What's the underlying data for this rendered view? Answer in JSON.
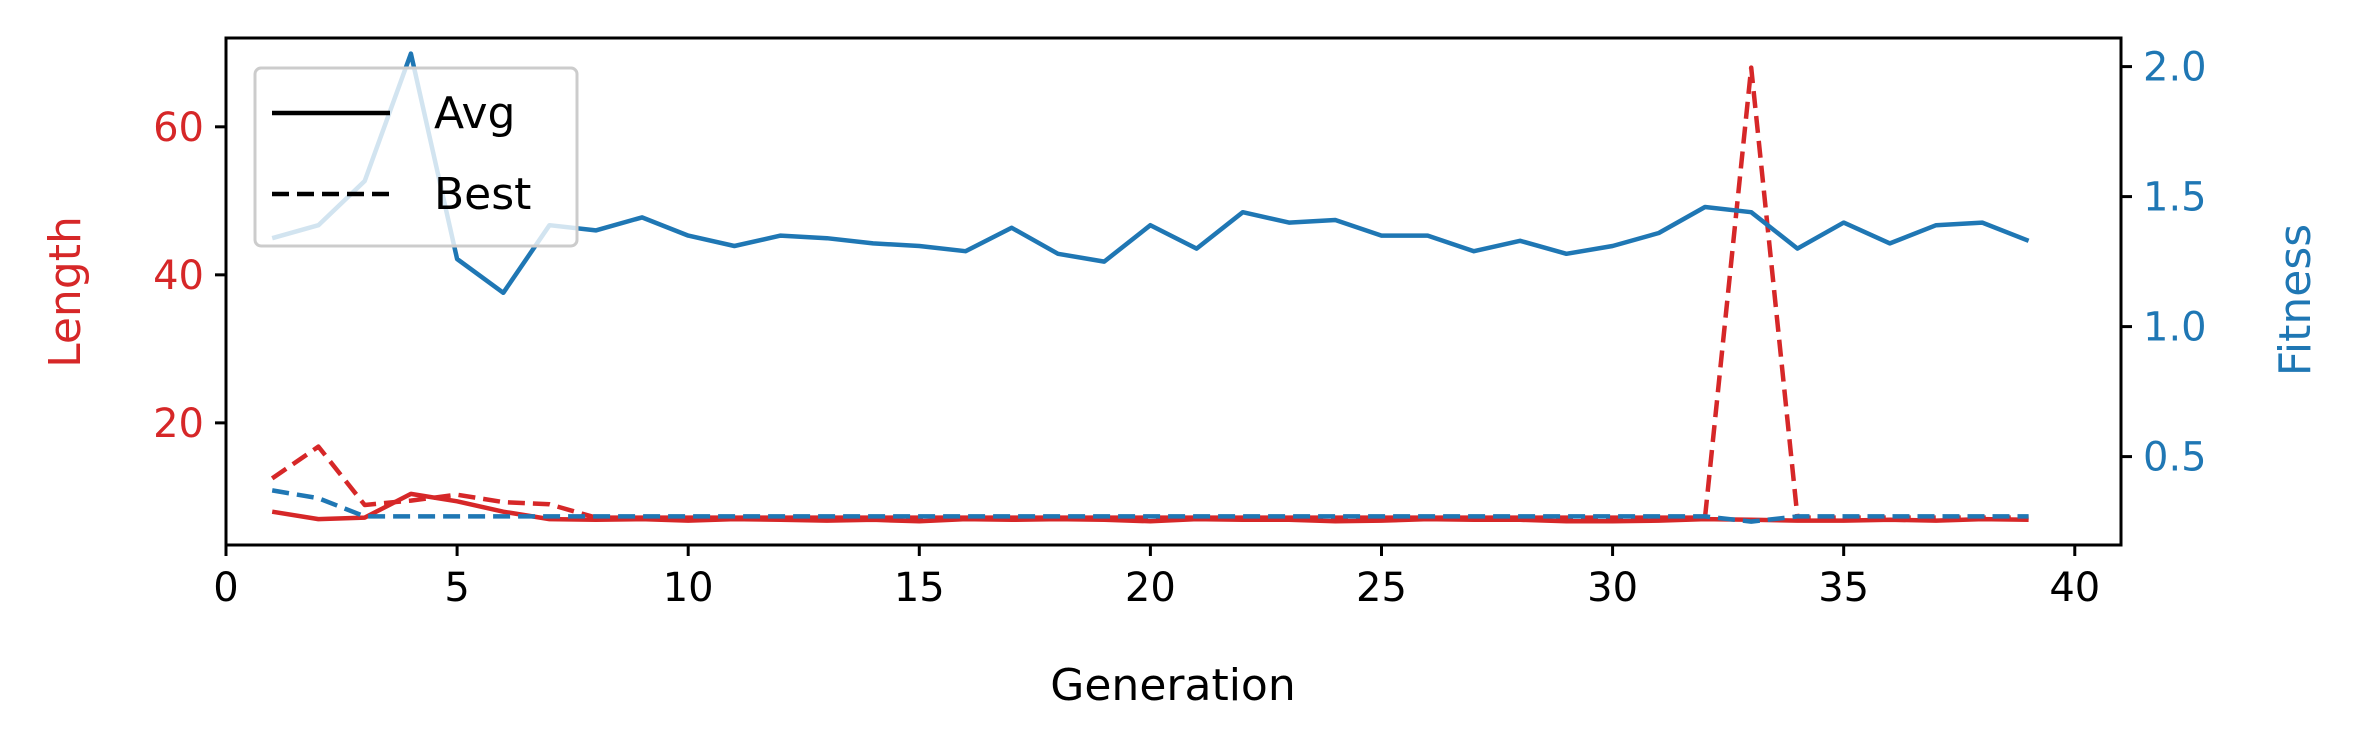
{
  "chart_data": {
    "type": "line",
    "xlabel": "Generation",
    "ylabel_left": "Length",
    "ylabel_right": "Fitness",
    "xlim": [
      0,
      41
    ],
    "ylim_left": [
      3.5,
      72
    ],
    "ylim_right": [
      0.16,
      2.11
    ],
    "xticks": [
      0,
      5,
      10,
      15,
      20,
      25,
      30,
      35,
      40
    ],
    "yticks_left": [
      20,
      40,
      60
    ],
    "yticks_right": [
      0.5,
      1.0,
      1.5,
      2.0
    ],
    "xtick_labels": [
      "0",
      "5",
      "10",
      "15",
      "20",
      "25",
      "30",
      "35",
      "40"
    ],
    "ytick_labels_left": [
      "20",
      "40",
      "60"
    ],
    "ytick_labels_right": [
      "0.5",
      "1.0",
      "1.5",
      "2.0"
    ],
    "grid": false,
    "legend_placement": "upper-left",
    "legend": [
      {
        "label": "Avg",
        "style": "solid"
      },
      {
        "label": "Best",
        "style": "dashed"
      }
    ],
    "colors": {
      "length": "#d62728",
      "fitness": "#1f77b4",
      "axis": "#000000"
    },
    "x": [
      1,
      2,
      3,
      4,
      5,
      6,
      7,
      8,
      9,
      10,
      11,
      12,
      13,
      14,
      15,
      16,
      17,
      18,
      19,
      20,
      21,
      22,
      23,
      24,
      25,
      26,
      27,
      28,
      29,
      30,
      31,
      32,
      33,
      34,
      35,
      36,
      37,
      38,
      39
    ],
    "series": [
      {
        "name": "Avg",
        "quantity": "Length",
        "axis": "left",
        "style": "solid",
        "values": [
          8.0,
          7.0,
          7.2,
          10.4,
          9.4,
          8.0,
          7.0,
          6.9,
          7.0,
          6.8,
          7.0,
          6.9,
          6.8,
          6.9,
          6.7,
          7.0,
          6.9,
          7.0,
          6.9,
          6.7,
          7.0,
          6.9,
          6.9,
          6.7,
          6.8,
          7.0,
          6.9,
          6.9,
          6.7,
          6.7,
          6.8,
          7.0,
          6.9,
          6.8,
          6.8,
          6.9,
          6.8,
          7.0,
          6.9
        ]
      },
      {
        "name": "Best",
        "quantity": "Length",
        "axis": "left",
        "style": "dashed",
        "values": [
          12.5,
          16.8,
          8.9,
          9.5,
          10.3,
          9.3,
          9.0,
          7.2,
          7.2,
          7.2,
          7.2,
          7.2,
          7.2,
          7.2,
          7.2,
          7.2,
          7.2,
          7.2,
          7.2,
          7.2,
          7.2,
          7.2,
          7.2,
          7.2,
          7.2,
          7.2,
          7.2,
          7.2,
          7.2,
          7.2,
          7.2,
          7.2,
          68.0,
          7.2,
          7.2,
          7.2,
          7.2,
          7.2,
          7.2
        ]
      },
      {
        "name": "Avg",
        "quantity": "Fitness",
        "axis": "right",
        "style": "solid",
        "values": [
          1.34,
          1.39,
          1.56,
          2.05,
          1.26,
          1.13,
          1.39,
          1.37,
          1.42,
          1.35,
          1.31,
          1.35,
          1.34,
          1.32,
          1.31,
          1.29,
          1.38,
          1.28,
          1.25,
          1.39,
          1.3,
          1.44,
          1.4,
          1.41,
          1.35,
          1.35,
          1.29,
          1.33,
          1.28,
          1.31,
          1.36,
          1.46,
          1.44,
          1.3,
          1.4,
          1.32,
          1.39,
          1.4,
          1.33
        ]
      },
      {
        "name": "Best",
        "quantity": "Fitness",
        "axis": "right",
        "style": "dashed",
        "values": [
          0.37,
          0.34,
          0.27,
          0.27,
          0.27,
          0.27,
          0.27,
          0.27,
          0.27,
          0.27,
          0.27,
          0.27,
          0.27,
          0.27,
          0.27,
          0.27,
          0.27,
          0.27,
          0.27,
          0.27,
          0.27,
          0.27,
          0.27,
          0.27,
          0.27,
          0.27,
          0.27,
          0.27,
          0.27,
          0.27,
          0.27,
          0.27,
          0.25,
          0.27,
          0.27,
          0.27,
          0.27,
          0.27,
          0.27
        ]
      }
    ]
  }
}
